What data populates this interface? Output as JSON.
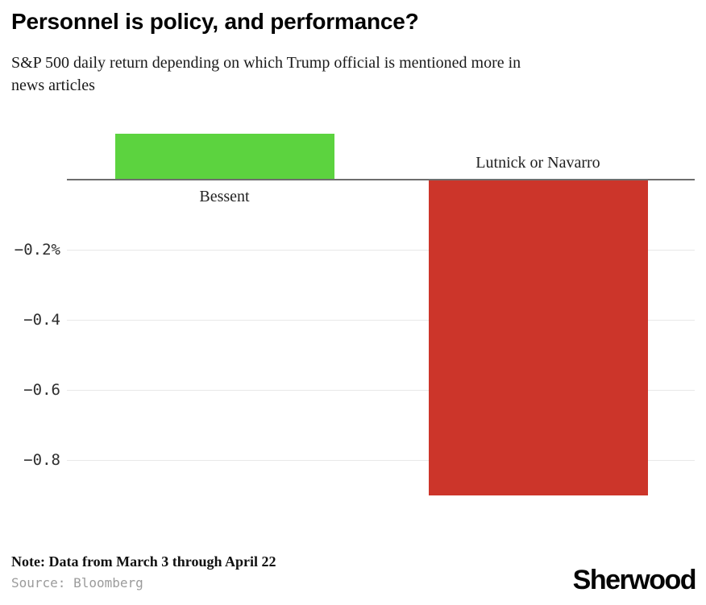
{
  "header": {
    "title": "Personnel is policy, and performance?",
    "subtitle": "S&P 500 daily return depending on which Trump official is mentioned more in news articles",
    "subtitle_lines": [
      "S&P 500 daily return depending on which Trump official is mentioned more in",
      "news articles"
    ]
  },
  "chart_data": {
    "type": "bar",
    "title": "Personnel is policy, and performance?",
    "subtitle": "S&P 500 daily return depending on which Trump official is mentioned more in news articles",
    "categories": [
      "Bessent",
      "Lutnick or Navarro"
    ],
    "values": [
      0.13,
      -0.9
    ],
    "value_unit": "% (S&P 500 daily return)",
    "bar_colors": [
      "#5cd33f",
      "#cc352a"
    ],
    "yticks": [
      {
        "value": -0.2,
        "label": "−0.2%"
      },
      {
        "value": -0.4,
        "label": "−0.4"
      },
      {
        "value": -0.6,
        "label": "−0.6"
      },
      {
        "value": -0.8,
        "label": "−0.8"
      }
    ],
    "ylim": [
      -0.98,
      0.18
    ],
    "grid": true,
    "zero_line": true,
    "legend": "none",
    "xlabel": "",
    "ylabel": ""
  },
  "footer": {
    "note": "Note: Data from March 3 through April 22",
    "source": "Source: Bloomberg",
    "brand": "Sherwood"
  },
  "colors": {
    "positive_bar": "#5cd33f",
    "negative_bar": "#cc352a",
    "zero_axis": "#6e6e6e",
    "gridline": "#e8e8e8",
    "tick_text": "#2e2e2e",
    "source_text": "#9b9b9b"
  }
}
